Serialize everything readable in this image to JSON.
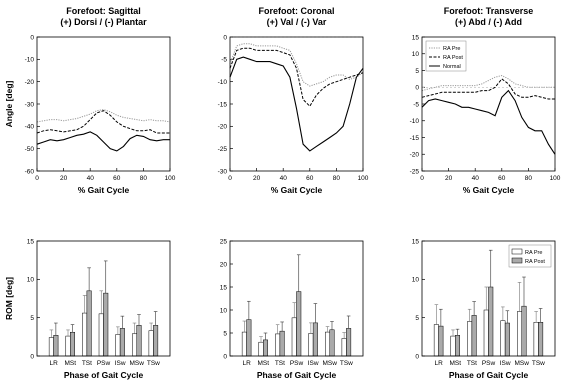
{
  "chart_data": [
    {
      "type": "line",
      "title": "Forefoot: Sagittal",
      "subtitle": "(+) Dorsi / (-) Plantar",
      "xlabel": "% Gait Cycle",
      "ylabel": "Angle [deg]",
      "xlim": [
        0,
        100
      ],
      "ylim": [
        -60,
        0
      ],
      "xticks": [
        0,
        20,
        40,
        60,
        80,
        100
      ],
      "yticks": [
        0,
        -10,
        -20,
        -30,
        -40,
        -50,
        -60
      ],
      "show_ylabel": true,
      "legend": false,
      "series": [
        {
          "name": "RA Pre",
          "style": "dotted",
          "color": "#999999",
          "x": [
            0,
            5,
            10,
            15,
            20,
            25,
            30,
            35,
            40,
            45,
            50,
            55,
            60,
            65,
            70,
            75,
            80,
            85,
            90,
            95,
            100
          ],
          "y": [
            -38,
            -37.5,
            -37,
            -37,
            -37.5,
            -37,
            -36.5,
            -35.5,
            -34.5,
            -33,
            -32.5,
            -33.5,
            -35,
            -36,
            -36.5,
            -37,
            -37.5,
            -37,
            -37.5,
            -37.5,
            -38
          ]
        },
        {
          "name": "RA Post",
          "style": "dashed",
          "color": "#000000",
          "x": [
            0,
            5,
            10,
            15,
            20,
            25,
            30,
            35,
            40,
            45,
            50,
            55,
            60,
            65,
            70,
            75,
            80,
            85,
            90,
            95,
            100
          ],
          "y": [
            -43,
            -42,
            -41.5,
            -42,
            -42.5,
            -42,
            -41.5,
            -40,
            -37,
            -34,
            -33,
            -35,
            -38,
            -40,
            -41,
            -42,
            -42,
            -41.5,
            -43,
            -43,
            -43
          ]
        },
        {
          "name": "Normal",
          "style": "solid",
          "color": "#000000",
          "x": [
            0,
            5,
            10,
            15,
            20,
            25,
            30,
            35,
            40,
            45,
            50,
            55,
            60,
            65,
            70,
            75,
            80,
            85,
            90,
            95,
            100
          ],
          "y": [
            -48,
            -47,
            -46,
            -46.5,
            -46,
            -45,
            -44,
            -43.5,
            -42.5,
            -44,
            -47,
            -50,
            -51,
            -49,
            -45.5,
            -44,
            -44.5,
            -46,
            -46.5,
            -46,
            -46
          ]
        }
      ]
    },
    {
      "type": "line",
      "title": "Forefoot: Coronal",
      "subtitle": "(+) Val / (-) Var",
      "xlabel": "% Gait Cycle",
      "ylabel": "",
      "xlim": [
        0,
        100
      ],
      "ylim": [
        -30,
        0
      ],
      "xticks": [
        0,
        20,
        40,
        60,
        80,
        100
      ],
      "yticks": [
        0,
        -5,
        -10,
        -15,
        -20,
        -25,
        -30
      ],
      "show_ylabel": false,
      "legend": false,
      "zero_line": true,
      "series": [
        {
          "name": "RA Pre",
          "style": "dotted",
          "color": "#999999",
          "x": [
            0,
            5,
            10,
            15,
            20,
            25,
            30,
            35,
            40,
            45,
            50,
            55,
            60,
            65,
            70,
            75,
            80,
            85,
            90,
            95,
            100
          ],
          "y": [
            -6,
            -2,
            -1.5,
            -1.5,
            -2,
            -2,
            -2,
            -2,
            -2.5,
            -3,
            -6,
            -10,
            -11,
            -10.5,
            -10,
            -9,
            -8.5,
            -8.5,
            -9.5,
            -9,
            -8
          ]
        },
        {
          "name": "RA Post",
          "style": "dashed",
          "color": "#000000",
          "x": [
            0,
            5,
            10,
            15,
            20,
            25,
            30,
            35,
            40,
            45,
            50,
            55,
            60,
            65,
            70,
            75,
            80,
            85,
            90,
            95,
            100
          ],
          "y": [
            -7,
            -3,
            -2.5,
            -2.5,
            -3,
            -3,
            -3,
            -3,
            -3.5,
            -4,
            -7,
            -14,
            -15.5,
            -13,
            -11.5,
            -10.5,
            -10,
            -9.5,
            -9,
            -8.5,
            -8
          ]
        },
        {
          "name": "Normal",
          "style": "solid",
          "color": "#000000",
          "x": [
            0,
            5,
            10,
            15,
            20,
            25,
            30,
            35,
            40,
            45,
            50,
            55,
            60,
            65,
            70,
            75,
            80,
            85,
            90,
            95,
            100
          ],
          "y": [
            -9,
            -5,
            -4.5,
            -5,
            -5.5,
            -5.5,
            -5.5,
            -6,
            -6.5,
            -9,
            -16,
            -24,
            -25.5,
            -24.5,
            -23.5,
            -22.5,
            -21.5,
            -20,
            -15,
            -9,
            -7
          ]
        }
      ]
    },
    {
      "type": "line",
      "title": "Forefoot: Transverse",
      "subtitle": "(+) Abd / (-) Add",
      "xlabel": "% Gait Cycle",
      "ylabel": "",
      "xlim": [
        0,
        100
      ],
      "ylim": [
        -25,
        15
      ],
      "xticks": [
        0,
        20,
        40,
        60,
        80,
        100
      ],
      "yticks": [
        15,
        10,
        5,
        0,
        -5,
        -10,
        -15,
        -20,
        -25
      ],
      "show_ylabel": false,
      "legend": true,
      "legend_loc": "top-left",
      "zero_line": true,
      "series": [
        {
          "name": "RA Pre",
          "style": "dotted",
          "color": "#999999",
          "x": [
            0,
            5,
            10,
            15,
            20,
            25,
            30,
            35,
            40,
            45,
            50,
            55,
            60,
            65,
            70,
            75,
            80,
            85,
            90,
            95,
            100
          ],
          "y": [
            -1,
            -0.5,
            0,
            0.5,
            0.5,
            0.5,
            0.5,
            0.5,
            0.5,
            1,
            2,
            3,
            3.5,
            2.5,
            1,
            0.5,
            0,
            0,
            0,
            0,
            0
          ]
        },
        {
          "name": "RA Post",
          "style": "dashed",
          "color": "#000000",
          "x": [
            0,
            5,
            10,
            15,
            20,
            25,
            30,
            35,
            40,
            45,
            50,
            55,
            60,
            65,
            70,
            75,
            80,
            85,
            90,
            95,
            100
          ],
          "y": [
            -3,
            -2.5,
            -2,
            -1.5,
            -1.5,
            -1.5,
            -1.5,
            -1.5,
            -1.5,
            -1,
            -1,
            0,
            2.5,
            1,
            -2,
            -3,
            -3,
            -2.5,
            -3,
            -3.5,
            -3.5
          ]
        },
        {
          "name": "Normal",
          "style": "solid",
          "color": "#000000",
          "x": [
            0,
            5,
            10,
            15,
            20,
            25,
            30,
            35,
            40,
            45,
            50,
            55,
            60,
            65,
            70,
            75,
            80,
            85,
            90,
            95,
            100
          ],
          "y": [
            -6,
            -4,
            -3.5,
            -4,
            -4.5,
            -5,
            -6,
            -6,
            -6.5,
            -7,
            -7.5,
            -8.5,
            -3,
            -1,
            -4,
            -9,
            -12,
            -13,
            -13,
            -17,
            -20
          ]
        }
      ]
    },
    {
      "type": "bar",
      "xlabel": "Phase of Gait Cycle",
      "ylabel": "ROM [deg]",
      "ylim": [
        0,
        15
      ],
      "yticks": [
        0,
        5,
        10,
        15
      ],
      "categories": [
        "LR",
        "MSt",
        "TSt",
        "PSw",
        "ISw",
        "MSw",
        "TSw"
      ],
      "show_ylabel": true,
      "legend": false,
      "series": [
        {
          "name": "RA Pre",
          "color": "#ffffff",
          "values": [
            2.4,
            2.6,
            5.6,
            5.5,
            2.8,
            2.9,
            3.3
          ],
          "errors": [
            1.0,
            0.8,
            2.3,
            3.0,
            1.0,
            1.4,
            1.0
          ]
        },
        {
          "name": "RA Post",
          "color": "#aaaaaa",
          "values": [
            2.7,
            3.1,
            8.5,
            8.2,
            3.6,
            4.0,
            4.0
          ],
          "errors": [
            1.6,
            1.0,
            3.0,
            4.2,
            1.6,
            1.4,
            1.8
          ]
        }
      ]
    },
    {
      "type": "bar",
      "xlabel": "Phase of Gait Cycle",
      "ylabel": "",
      "ylim": [
        0,
        25
      ],
      "yticks": [
        0,
        5,
        10,
        15,
        20,
        25
      ],
      "categories": [
        "LR",
        "MSt",
        "TSt",
        "PSw",
        "ISw",
        "MSw",
        "TSw"
      ],
      "show_ylabel": false,
      "legend": false,
      "series": [
        {
          "name": "RA Pre",
          "color": "#ffffff",
          "values": [
            5.2,
            3.0,
            4.8,
            8.3,
            4.9,
            5.2,
            3.8
          ],
          "errors": [
            2.4,
            1.2,
            2.0,
            3.3,
            2.3,
            1.2,
            1.3
          ]
        },
        {
          "name": "RA Post",
          "color": "#aaaaaa",
          "values": [
            7.9,
            3.5,
            5.4,
            14.0,
            7.2,
            5.7,
            6.0
          ],
          "errors": [
            4.0,
            1.5,
            2.0,
            8.0,
            4.2,
            1.8,
            2.7
          ]
        }
      ]
    },
    {
      "type": "bar",
      "xlabel": "Phase of Gait Cycle",
      "ylabel": "",
      "ylim": [
        0,
        15
      ],
      "yticks": [
        0,
        5,
        10,
        15
      ],
      "categories": [
        "LR",
        "MSt",
        "TSt",
        "PSw",
        "ISw",
        "MSw",
        "TSw"
      ],
      "show_ylabel": false,
      "legend": true,
      "legend_loc": "top-right",
      "series": [
        {
          "name": "RA Pre",
          "color": "#ffffff",
          "values": [
            4.1,
            2.6,
            4.5,
            6.0,
            4.6,
            5.8,
            4.4
          ],
          "errors": [
            2.6,
            0.8,
            1.6,
            3.0,
            1.8,
            3.8,
            1.4
          ]
        },
        {
          "name": "RA Post",
          "color": "#aaaaaa",
          "values": [
            3.9,
            2.7,
            5.3,
            9.0,
            4.3,
            6.5,
            4.4
          ],
          "errors": [
            2.2,
            0.8,
            1.8,
            4.8,
            1.6,
            3.8,
            1.8
          ]
        }
      ]
    }
  ]
}
